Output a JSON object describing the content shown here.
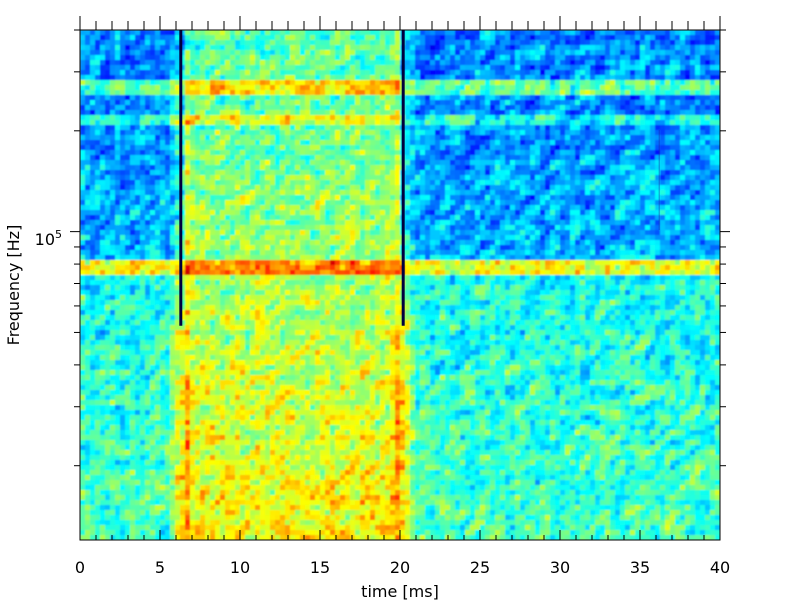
{
  "chart_data": {
    "type": "heatmap",
    "title": "",
    "xlabel": "time [ms]",
    "ylabel": "Frequency [Hz]",
    "xlim": [
      0,
      40
    ],
    "ylim_hz_approx": [
      12000,
      400000
    ],
    "y_scale": "log",
    "x_ticks": [
      "0",
      "5",
      "10",
      "15",
      "20",
      "25",
      "30",
      "35",
      "40"
    ],
    "y_tick_label": {
      "base": "10",
      "exponent": "5"
    },
    "colormap": "jet",
    "colors": {
      "low": "#00007f",
      "mid_low": "#0080ff",
      "mid": "#7fff7f",
      "mid_high": "#ffff00",
      "high": "#ff4000"
    },
    "features": {
      "vertical_lines_ms": [
        6.3,
        20.2
      ],
      "broadband_events_ms": [
        6.3,
        20.2
      ],
      "active_interval_ms": [
        6.5,
        20.0
      ],
      "horizontal_band_hz_approx": [
        78000,
        270000
      ],
      "secondary_band_hz_approx": 215000,
      "faint_marker_ms": 36.2
    }
  }
}
